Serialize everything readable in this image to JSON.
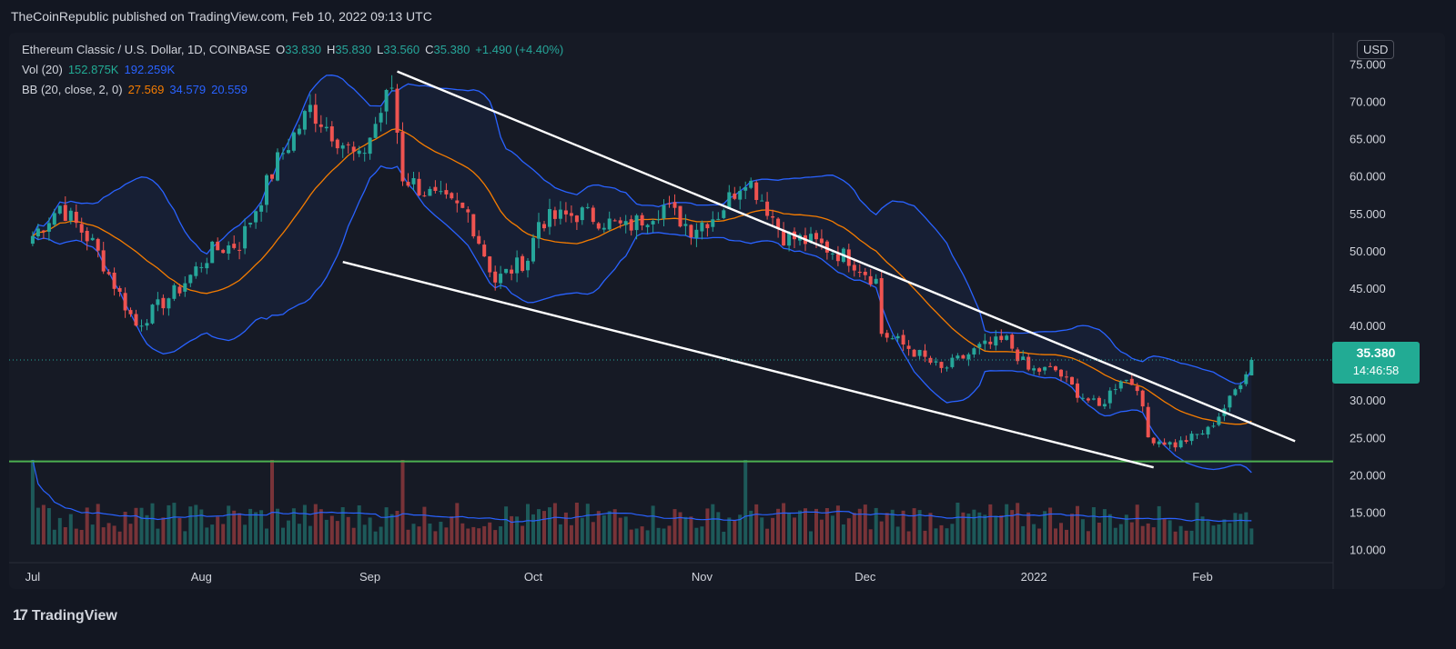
{
  "header": {
    "publisher_line": "TheCoinRepublic published on TradingView.com, Feb 10, 2022 09:13 UTC"
  },
  "legend": {
    "symbol": "Ethereum Classic / U.S. Dollar, 1D, COINBASE",
    "o_label": "O",
    "o_value": "33.830",
    "h_label": "H",
    "h_value": "35.830",
    "l_label": "L",
    "l_value": "33.560",
    "c_label": "C",
    "c_value": "35.380",
    "change": "+1.490 (+4.40%)",
    "vol_label": "Vol (20)",
    "vol_value": "152.875K",
    "vol_ma": "192.259K",
    "bb_label": "BB (20, close, 2, 0)",
    "bb_basis": "27.569",
    "bb_upper": "34.579",
    "bb_lower": "20.559"
  },
  "currency_button": "USD",
  "last_price": {
    "price": "35.380",
    "countdown": "14:46:58"
  },
  "footer": {
    "brand": "TradingView",
    "logo_glyph": "17"
  },
  "colors": {
    "up": "#26a69a",
    "down": "#ef5350",
    "bb_band": "#2962ff",
    "bb_basis": "#f57c00",
    "support": "#4caf50",
    "trendline": "#ffffff"
  },
  "chart_data": {
    "type": "candlestick",
    "y_ticks": [
      "75.000",
      "70.000",
      "65.000",
      "60.000",
      "55.000",
      "50.000",
      "45.000",
      "40.000",
      "35.000",
      "30.000",
      "25.000",
      "20.000",
      "15.000",
      "10.000"
    ],
    "x_ticks": [
      "Jul",
      "Aug",
      "Sep",
      "Oct",
      "Nov",
      "Dec",
      "2022",
      "Feb"
    ],
    "ylim": [
      8,
      77
    ],
    "anchors": [
      {
        "date": "2021-07-01",
        "close": 52
      },
      {
        "date": "2021-07-06",
        "close": 56
      },
      {
        "date": "2021-07-12",
        "close": 51
      },
      {
        "date": "2021-07-20",
        "close": 40
      },
      {
        "date": "2021-07-28",
        "close": 45
      },
      {
        "date": "2021-08-03",
        "close": 50
      },
      {
        "date": "2021-08-08",
        "close": 51
      },
      {
        "date": "2021-08-15",
        "close": 62
      },
      {
        "date": "2021-08-21",
        "close": 69
      },
      {
        "date": "2021-08-25",
        "close": 66
      },
      {
        "date": "2021-08-30",
        "close": 62
      },
      {
        "date": "2021-09-05",
        "close": 72
      },
      {
        "date": "2021-09-07",
        "close": 60
      },
      {
        "date": "2021-09-13",
        "close": 57
      },
      {
        "date": "2021-09-19",
        "close": 55
      },
      {
        "date": "2021-09-24",
        "close": 46
      },
      {
        "date": "2021-09-30",
        "close": 49
      },
      {
        "date": "2021-10-02",
        "close": 54
      },
      {
        "date": "2021-10-10",
        "close": 55
      },
      {
        "date": "2021-10-18",
        "close": 53
      },
      {
        "date": "2021-10-25",
        "close": 56
      },
      {
        "date": "2021-10-30",
        "close": 53
      },
      {
        "date": "2021-11-04",
        "close": 55
      },
      {
        "date": "2021-11-09",
        "close": 60
      },
      {
        "date": "2021-11-12",
        "close": 57
      },
      {
        "date": "2021-11-16",
        "close": 52
      },
      {
        "date": "2021-11-22",
        "close": 51
      },
      {
        "date": "2021-11-28",
        "close": 49
      },
      {
        "date": "2021-12-03",
        "close": 46
      },
      {
        "date": "2021-12-04",
        "close": 39
      },
      {
        "date": "2021-12-09",
        "close": 37
      },
      {
        "date": "2021-12-15",
        "close": 34
      },
      {
        "date": "2021-12-22",
        "close": 37
      },
      {
        "date": "2021-12-27",
        "close": 38
      },
      {
        "date": "2021-12-31",
        "close": 34
      },
      {
        "date": "2022-01-05",
        "close": 34
      },
      {
        "date": "2022-01-09",
        "close": 31
      },
      {
        "date": "2022-01-13",
        "close": 29
      },
      {
        "date": "2022-01-17",
        "close": 33
      },
      {
        "date": "2022-01-20",
        "close": 32
      },
      {
        "date": "2022-01-22",
        "close": 25
      },
      {
        "date": "2022-01-27",
        "close": 24
      },
      {
        "date": "2022-02-02",
        "close": 26
      },
      {
        "date": "2022-02-06",
        "close": 30
      },
      {
        "date": "2022-02-10",
        "close": 35.38
      }
    ],
    "volume_relative": "bars in lower pane, peak spikes near 2021-08-14, 2021-09-07, 2021-11-09",
    "bollinger_bands": {
      "length": 20,
      "mult": 2
    },
    "trendlines": [
      {
        "from": {
          "date": "2021-09-06",
          "value": 74
        },
        "to": {
          "date": "2022-02-18",
          "value": 24.5
        }
      },
      {
        "from": {
          "date": "2021-08-27",
          "value": 48.5
        },
        "to": {
          "date": "2022-01-23",
          "value": 21
        }
      }
    ],
    "support_level": 21.8,
    "grid": "off",
    "legend_position": "top-left"
  }
}
